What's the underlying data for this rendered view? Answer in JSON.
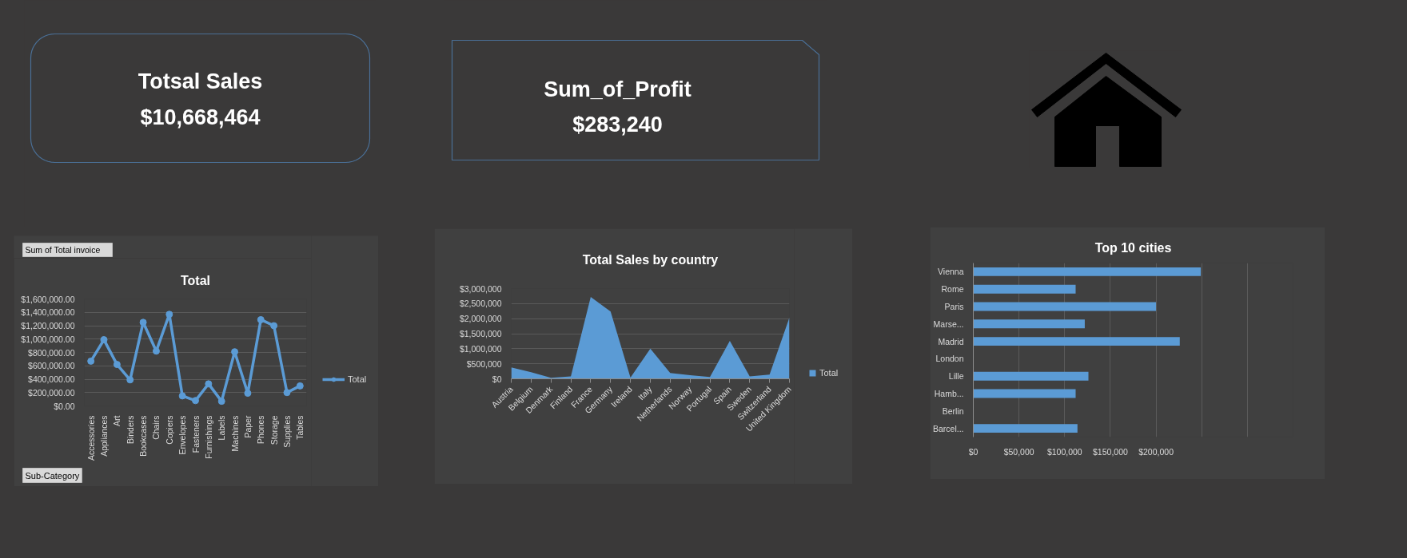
{
  "chart_data": [
    {
      "type": "other",
      "title": "Totsal Sales",
      "annotations": [
        "$10,668,464"
      ]
    },
    {
      "type": "other",
      "title": "Sum_of_Profit",
      "annotations": [
        "$283,240"
      ]
    },
    {
      "type": "line",
      "title": "Total",
      "categories": [
        "Accessories",
        "Appliances",
        "Art",
        "Binders",
        "Bookcases",
        "Chairs",
        "Copiers",
        "Envelopes",
        "Fasteners",
        "Furnishings",
        "Labels",
        "Machines",
        "Paper",
        "Phones",
        "Storage",
        "Supplies",
        "Tables"
      ],
      "series": [
        {
          "name": "Total",
          "color": "#5b9bd5",
          "values": [
            670000,
            990000,
            620000,
            390000,
            1250000,
            820000,
            1370000,
            150000,
            80000,
            330000,
            70000,
            810000,
            190000,
            1290000,
            1200000,
            200000,
            300000
          ]
        }
      ],
      "ylim": [
        0,
        1600000
      ],
      "yticks": [
        {
          "value": 0,
          "label": "$0.00"
        },
        {
          "value": 200000,
          "label": "$200,000.00"
        },
        {
          "value": 400000,
          "label": "$400,000.00"
        },
        {
          "value": 600000,
          "label": "$600,000.00"
        },
        {
          "value": 800000,
          "label": "$800,000.00"
        },
        {
          "value": 1000000,
          "label": "$1,000,000.00"
        },
        {
          "value": 1200000,
          "label": "$1,200,000.00"
        },
        {
          "value": 1400000,
          "label": "$1,400,000.00"
        },
        {
          "value": 1600000,
          "label": "$1,600,000.00"
        }
      ],
      "grid": "y",
      "legend": "right",
      "marker": "circle",
      "annotations": [
        "Sum of Total invoice",
        "Sub-Category"
      ]
    },
    {
      "type": "area",
      "title": "Total Sales by country",
      "categories": [
        "Austria",
        "Belgium",
        "Denmark",
        "Finland",
        "France",
        "Germany",
        "Ireland",
        "Italy",
        "Netherlands",
        "Norway",
        "Portugal",
        "Spain",
        "Sweden",
        "Switzerland",
        "United Kingdom"
      ],
      "series": [
        {
          "name": "Total",
          "color": "#5b9bd5",
          "values": [
            380000,
            220000,
            30000,
            80000,
            2720000,
            2240000,
            40000,
            1000000,
            190000,
            120000,
            60000,
            1260000,
            80000,
            140000,
            2040000
          ]
        }
      ],
      "ylim": [
        0,
        3000000
      ],
      "yticks": [
        {
          "value": 0,
          "label": "$0"
        },
        {
          "value": 500000,
          "label": "$500,000"
        },
        {
          "value": 1000000,
          "label": "$1,000,000"
        },
        {
          "value": 1500000,
          "label": "$1,500,000"
        },
        {
          "value": 2000000,
          "label": "$2,000,000"
        },
        {
          "value": 2500000,
          "label": "$2,500,000"
        },
        {
          "value": 3000000,
          "label": "$3,000,000"
        }
      ],
      "grid": "y",
      "legend": "right"
    },
    {
      "type": "bar",
      "orientation": "horizontal",
      "title": "Top 10 cities",
      "categories": [
        "Vienna",
        "Rome",
        "Paris",
        "Marse...",
        "Madrid",
        "London",
        "Lille",
        "Hamb...",
        "Berlin",
        "Barcel..."
      ],
      "values": [
        249000,
        112000,
        200000,
        122000,
        226000,
        null,
        126000,
        112000,
        null,
        114000
      ],
      "color": "#5b9bd5",
      "xlim": [
        0,
        350000
      ],
      "xticks": [
        {
          "value": 0,
          "label": "$0"
        },
        {
          "value": 50000,
          "label": "$50,000"
        },
        {
          "value": 100000,
          "label": "$100,000"
        },
        {
          "value": 150000,
          "label": "$150,000"
        },
        {
          "value": 200000,
          "label": "$200,000"
        },
        {
          "value": 250000,
          "label": null
        },
        {
          "value": 300000,
          "label": null
        },
        {
          "value": 350000,
          "label": null
        }
      ],
      "grid": "x"
    }
  ]
}
